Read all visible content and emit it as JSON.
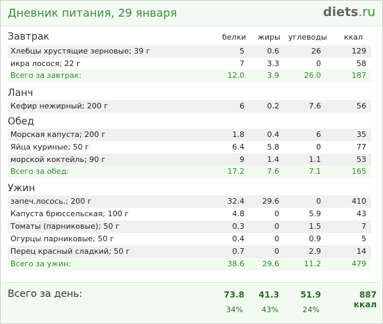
{
  "header": {
    "title": "Дневник питания, 29 января",
    "logo_main": "diets",
    "logo_tld": ".ru"
  },
  "columns": {
    "protein": "белки",
    "fat": "жиры",
    "carbs": "углеводы",
    "kcal": "ккал"
  },
  "meals": [
    {
      "name": "Завтрак",
      "items": [
        {
          "name": "Хлебцы хрустящие зерновые; 39 г",
          "p": "5",
          "f": "0.6",
          "c": "26",
          "k": "129"
        },
        {
          "name": "икра лосося; 22 г",
          "p": "7",
          "f": "3.3",
          "c": "0",
          "k": "58"
        }
      ],
      "total": {
        "label": "Всего за завтрак:",
        "p": "12.0",
        "f": "3.9",
        "c": "26.0",
        "k": "187"
      }
    },
    {
      "name": "Ланч",
      "items": [
        {
          "name": "Кефир нежирный; 200 г",
          "p": "6",
          "f": "0.2",
          "c": "7.6",
          "k": "56"
        }
      ]
    },
    {
      "name": "Обед",
      "items": [
        {
          "name": "Морская капуста; 200 г",
          "p": "1.8",
          "f": "0.4",
          "c": "6",
          "k": "35"
        },
        {
          "name": "Яйца куриные; 50 г",
          "p": "6.4",
          "f": "5.8",
          "c": "0",
          "k": "77"
        },
        {
          "name": "морской коктейль; 90 г",
          "p": "9",
          "f": "1.4",
          "c": "1.1",
          "k": "53"
        }
      ],
      "total": {
        "label": "Всего за обед:",
        "p": "17.2",
        "f": "7.6",
        "c": "7.1",
        "k": "165"
      }
    },
    {
      "name": "Ужин",
      "items": [
        {
          "name": "запеч.лосось.; 200 г",
          "p": "32.4",
          "f": "29.6",
          "c": "0",
          "k": "410"
        },
        {
          "name": "Капуста брюссельская; 100 г",
          "p": "4.8",
          "f": "0",
          "c": "5.9",
          "k": "43"
        },
        {
          "name": "Томаты (парниковые); 50 г",
          "p": "0.3",
          "f": "0",
          "c": "1.5",
          "k": "7"
        },
        {
          "name": "Огурцы парниковые; 50 г",
          "p": "0.4",
          "f": "0",
          "c": "0.9",
          "k": "5"
        },
        {
          "name": "Перец красный сладкий; 50 г",
          "p": "0.7",
          "f": "0",
          "c": "2.9",
          "k": "14"
        }
      ],
      "total": {
        "label": "Всего за ужин:",
        "p": "38.6",
        "f": "29.6",
        "c": "11.2",
        "k": "479"
      }
    }
  ],
  "day_total": {
    "label": "Всего за день:",
    "p": "73.8",
    "f": "41.3",
    "c": "51.9",
    "k": "887 ккал",
    "p_pct": "34%",
    "f_pct": "43%",
    "c_pct": "24%"
  }
}
